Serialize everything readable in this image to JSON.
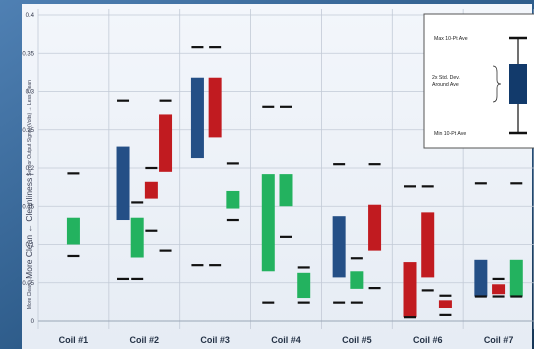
{
  "chart_data": {
    "type": "box",
    "title": "",
    "ylim": [
      0,
      0.4
    ],
    "yticks": [
      0,
      0.05,
      0.1,
      0.15,
      0.2,
      0.25,
      0.3,
      0.35,
      0.4
    ],
    "ylabel_top": "Sensor Output Signal (Volts) → Less Clean",
    "ylabel_mid": "More Clean ← Cleanliness |",
    "ylabel_bottom": "More Clean ←",
    "categories": [
      "Coil #1",
      "Coil #2",
      "Coil #3",
      "Coil #4",
      "Coil #5",
      "Coil #6",
      "Coil #7"
    ],
    "colors": {
      "blue": "#244f86",
      "red": "#c11b20",
      "green": "#23b25f"
    },
    "groups": [
      {
        "category": "Coil #1",
        "boxes": [
          {
            "color": "green",
            "low": 0.1,
            "high": 0.135,
            "min": 0.085,
            "max": 0.193
          }
        ]
      },
      {
        "category": "Coil #2",
        "boxes": [
          {
            "color": "blue",
            "low": 0.132,
            "high": 0.228,
            "min": 0.055,
            "max": 0.288
          },
          {
            "color": "green",
            "low": 0.083,
            "high": 0.135,
            "min": 0.055,
            "max": 0.155
          },
          {
            "color": "red",
            "low": 0.16,
            "high": 0.182,
            "min": 0.118,
            "max": 0.2
          },
          {
            "color": "red",
            "low": 0.195,
            "high": 0.27,
            "min": 0.092,
            "max": 0.288
          }
        ]
      },
      {
        "category": "Coil #3",
        "boxes": [
          {
            "color": "blue",
            "low": 0.213,
            "high": 0.318,
            "min": 0.073,
            "max": 0.358
          },
          {
            "color": "red",
            "low": 0.24,
            "high": 0.318,
            "min": 0.073,
            "max": 0.358
          },
          {
            "color": "green",
            "low": 0.147,
            "high": 0.17,
            "min": 0.132,
            "max": 0.206
          }
        ]
      },
      {
        "category": "Coil #4",
        "boxes": [
          {
            "color": "green",
            "low": 0.065,
            "high": 0.192,
            "min": 0.024,
            "max": 0.28
          },
          {
            "color": "green",
            "low": 0.15,
            "high": 0.192,
            "min": 0.11,
            "max": 0.28
          },
          {
            "color": "green",
            "low": 0.03,
            "high": 0.063,
            "min": 0.024,
            "max": 0.07
          }
        ]
      },
      {
        "category": "Coil #5",
        "boxes": [
          {
            "color": "blue",
            "low": 0.057,
            "high": 0.137,
            "min": 0.024,
            "max": 0.205
          },
          {
            "color": "green",
            "low": 0.042,
            "high": 0.065,
            "min": 0.024,
            "max": 0.082
          },
          {
            "color": "red",
            "low": 0.092,
            "high": 0.152,
            "min": 0.043,
            "max": 0.205
          }
        ]
      },
      {
        "category": "Coil #6",
        "boxes": [
          {
            "color": "red",
            "low": 0.005,
            "high": 0.077,
            "min": 0.005,
            "max": 0.176
          },
          {
            "color": "red",
            "low": 0.057,
            "high": 0.142,
            "min": 0.04,
            "max": 0.176
          },
          {
            "color": "red",
            "low": 0.017,
            "high": 0.027,
            "min": 0.008,
            "max": 0.033
          }
        ]
      },
      {
        "category": "Coil #7",
        "boxes": [
          {
            "color": "blue",
            "low": 0.032,
            "high": 0.08,
            "min": 0.032,
            "max": 0.18
          },
          {
            "color": "red",
            "low": 0.035,
            "high": 0.048,
            "min": 0.032,
            "max": 0.055
          },
          {
            "color": "green",
            "low": 0.032,
            "high": 0.08,
            "min": 0.032,
            "max": 0.18
          }
        ]
      }
    ],
    "legend": {
      "max_label": "Max 10-Pt Ave",
      "std_line1": "2x Std. Dev.",
      "std_line2": "Around Ave",
      "std_line3": "",
      "min_label": "Min 10-Pt Ave"
    }
  }
}
